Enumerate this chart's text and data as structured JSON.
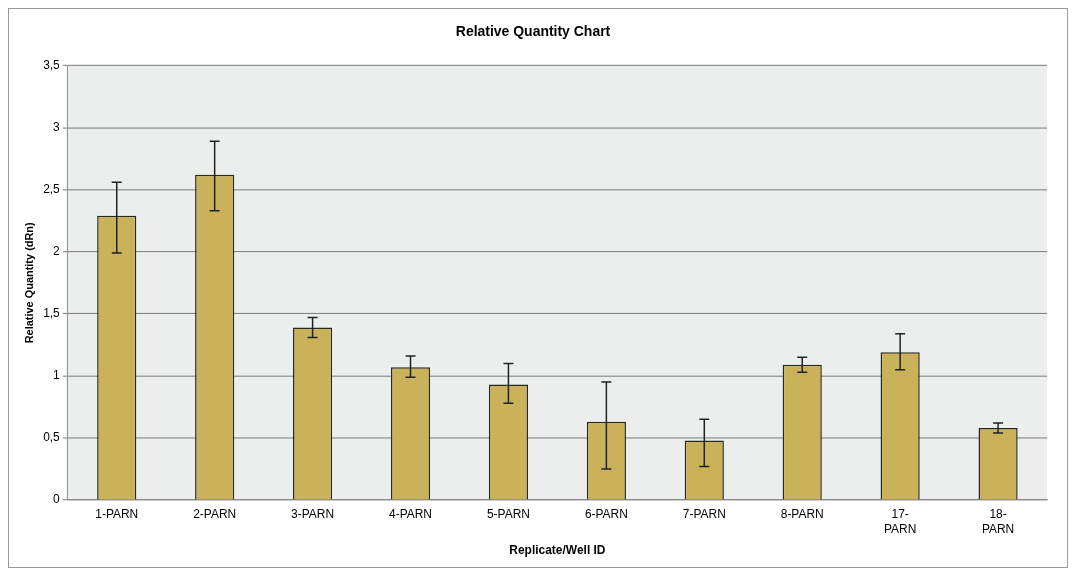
{
  "chart_data": {
    "type": "bar",
    "title": "Relative Quantity Chart",
    "xlabel": "Replicate/Well ID",
    "ylabel": "Relative Quantity (dRn)",
    "categories": [
      "1-PARN",
      "2-PARN",
      "3-PARN",
      "4-PARN",
      "5-PARN",
      "6-PARN",
      "7-PARN",
      "8-PARN",
      "17-\nPARN",
      "18-\nPARN"
    ],
    "values": [
      2.29,
      2.62,
      1.39,
      1.07,
      0.93,
      0.63,
      0.48,
      1.09,
      1.19,
      0.58
    ],
    "errors": [
      [
        1.99,
        2.56
      ],
      [
        2.33,
        2.89
      ],
      [
        1.31,
        1.47
      ],
      [
        0.99,
        1.16
      ],
      [
        0.78,
        1.1
      ],
      [
        0.25,
        0.95
      ],
      [
        0.27,
        0.65
      ],
      [
        1.03,
        1.15
      ],
      [
        1.05,
        1.34
      ],
      [
        0.54,
        0.62
      ]
    ],
    "color": "#c9b25a",
    "ylim": [
      0,
      3.5
    ],
    "yticks": [
      0,
      {
        "value": 0.5,
        "label": "0,5"
      },
      1,
      {
        "value": 1.5,
        "label": "1,5"
      },
      2,
      {
        "value": 2.5,
        "label": "2,5"
      },
      3,
      {
        "value": 3.5,
        "label": "3,5"
      }
    ],
    "grid": "y",
    "legend": false
  }
}
